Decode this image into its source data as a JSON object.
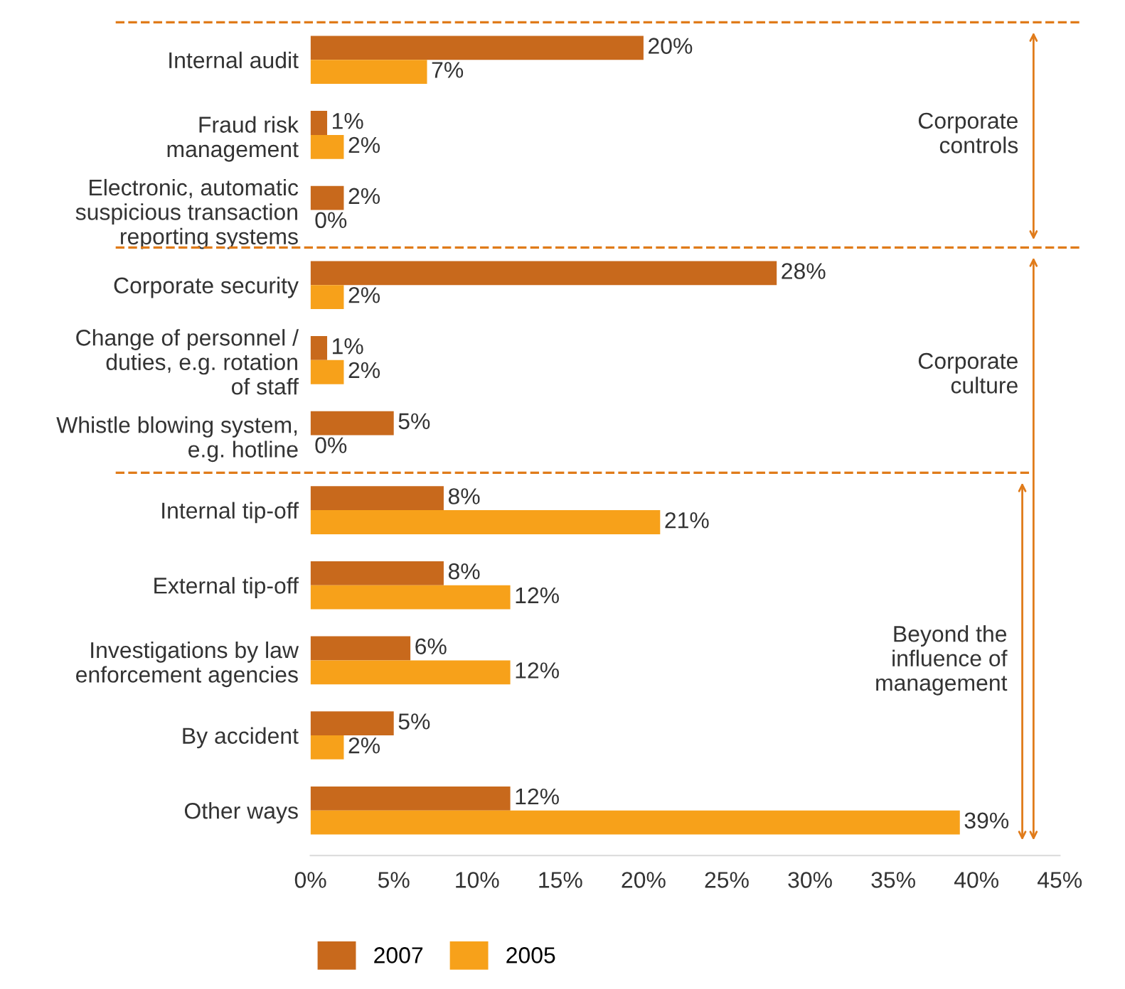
{
  "chart_data": {
    "type": "bar",
    "orientation": "horizontal",
    "categories": [
      "Internal audit",
      "Fraud risk\nmanagement",
      "Electronic, automatic\nsuspicious transaction\nreporting systems",
      "Corporate security",
      "Change of personnel /\nduties, e.g. rotation\nof staff",
      "Whistle blowing system,\ne.g. hotline",
      "Internal tip-off",
      "External tip-off",
      "Investigations by law\nenforcement agencies",
      "By accident",
      "Other ways"
    ],
    "series": [
      {
        "name": "2007",
        "color": "#c8691c",
        "values": [
          20,
          1,
          2,
          28,
          1,
          5,
          8,
          8,
          6,
          5,
          12
        ],
        "value_labels": [
          "20%",
          "1%",
          "2%",
          "28%",
          "1%",
          "5%",
          "8%",
          "8%",
          "6%",
          "5%",
          "12%"
        ]
      },
      {
        "name": "2005",
        "color": "#f7a11a",
        "values": [
          7,
          2,
          0,
          2,
          2,
          0,
          21,
          12,
          12,
          2,
          39
        ],
        "value_labels": [
          "7%",
          "2%",
          "0%",
          "2%",
          "2%",
          "0%",
          "21%",
          "12%",
          "12%",
          "2%",
          "39%"
        ]
      }
    ],
    "xlim": [
      0,
      45
    ],
    "xticks": [
      {
        "value": 0,
        "label": "0%"
      },
      {
        "value": 5,
        "label": "5%"
      },
      {
        "value": 10,
        "label": "10%"
      },
      {
        "value": 15,
        "label": "15%"
      },
      {
        "value": 20,
        "label": "20%"
      },
      {
        "value": 25,
        "label": "25%"
      },
      {
        "value": 30,
        "label": "30%"
      },
      {
        "value": 35,
        "label": "35%"
      },
      {
        "value": 40,
        "label": "40%"
      },
      {
        "value": 45,
        "label": "45%"
      }
    ],
    "annotations": [
      "Corporate\ncontrols",
      "Corporate\nculture",
      "Beyond the\ninfluence of\nmanagement"
    ],
    "grid": false,
    "legend": "bottom left"
  }
}
